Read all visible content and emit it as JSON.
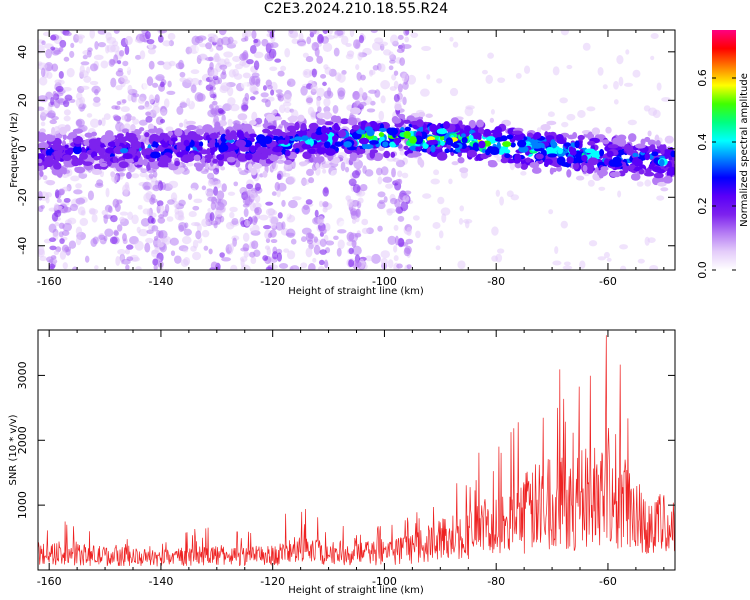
{
  "page_title": "C2E3.2024.210.18.55.R24",
  "chart_data": [
    {
      "type": "heatmap",
      "title": "C2E3.2024.210.18.55.R24",
      "xlabel": "Height of straight line (km)",
      "ylabel": "Frequency (Hz)",
      "xlim": [
        -162,
        -48
      ],
      "ylim": [
        -50,
        49
      ],
      "x_ticks": [
        -160,
        -140,
        -120,
        -100,
        -80,
        -60
      ],
      "x_tick_labels": [
        "-160",
        "-140",
        "-120",
        "-100",
        "-80",
        "-60"
      ],
      "y_ticks": [
        -40,
        -20,
        0,
        20,
        40
      ],
      "y_tick_labels": [
        "-40",
        "-20",
        "0",
        "20",
        "40"
      ],
      "ridge": {
        "description": "strong spectral band near 0 Hz drifting from about 0 Hz to +5 Hz around -95 km and back to -5 Hz at -50 km",
        "height_km": [
          -162,
          -140,
          -120,
          -110,
          -100,
          -90,
          -80,
          -70,
          -60,
          -50
        ],
        "center_hz": [
          -2,
          0,
          2,
          4,
          5,
          4,
          2,
          -1,
          -3,
          -5
        ],
        "peak_amplitude": [
          0.2,
          0.25,
          0.3,
          0.35,
          0.45,
          0.5,
          0.45,
          0.4,
          0.35,
          0.3
        ]
      },
      "colorbar": {
        "label": "Normalized spectral amplitude",
        "range": [
          0.0,
          0.75
        ],
        "ticks": [
          0.0,
          0.2,
          0.4,
          0.6
        ],
        "tick_labels": [
          "0.0",
          "0.2",
          "0.4",
          "0.6"
        ],
        "colormap": [
          "#ffffff",
          "#e4ccfa",
          "#b57cf4",
          "#7d22ee",
          "#5a00f8",
          "#0000ff",
          "#0080ff",
          "#00ffff",
          "#00ff80",
          "#40ff00",
          "#ffff00",
          "#ff8000",
          "#ff0000",
          "#ff0080"
        ]
      }
    },
    {
      "type": "line",
      "xlabel": "Height of straight line (km)",
      "ylabel": "SNR (10 * v/v)",
      "xlim": [
        -162,
        -48
      ],
      "ylim": [
        0,
        3700
      ],
      "x_ticks": [
        -160,
        -140,
        -120,
        -100,
        -80,
        -60
      ],
      "x_tick_labels": [
        "-160",
        "-140",
        "-120",
        "-100",
        "-80",
        "-60"
      ],
      "y_ticks": [
        1000,
        2000,
        3000
      ],
      "y_tick_labels": [
        "1000",
        "2000",
        "3000"
      ],
      "series": [
        {
          "name": "SNR",
          "color": "#ee2222",
          "envelope": {
            "x": [
              -162,
              -155,
              -150,
              -140,
              -132,
              -125,
              -120,
              -116,
              -110,
              -104,
              -98,
              -94,
              -90,
              -86,
              -82,
              -78,
              -75,
              -72,
              -70,
              -66,
              -63,
              -61,
              -60,
              -57,
              -54,
              -50,
              -48
            ],
            "y_mean": [
              280,
              260,
              240,
              200,
              260,
              240,
              250,
              330,
              300,
              280,
              320,
              380,
              520,
              620,
              680,
              760,
              980,
              1100,
              1180,
              1150,
              1300,
              1400,
              1450,
              1150,
              900,
              760,
              700
            ],
            "y_peak": [
              900,
              700,
              520,
              420,
              700,
              600,
              620,
              1050,
              700,
              650,
              700,
              900,
              1650,
              1700,
              1850,
              2050,
              2400,
              2300,
              3300,
              2700,
              3150,
              3300,
              3750,
              2950,
              1650,
              1400,
              1200
            ]
          }
        }
      ]
    }
  ]
}
